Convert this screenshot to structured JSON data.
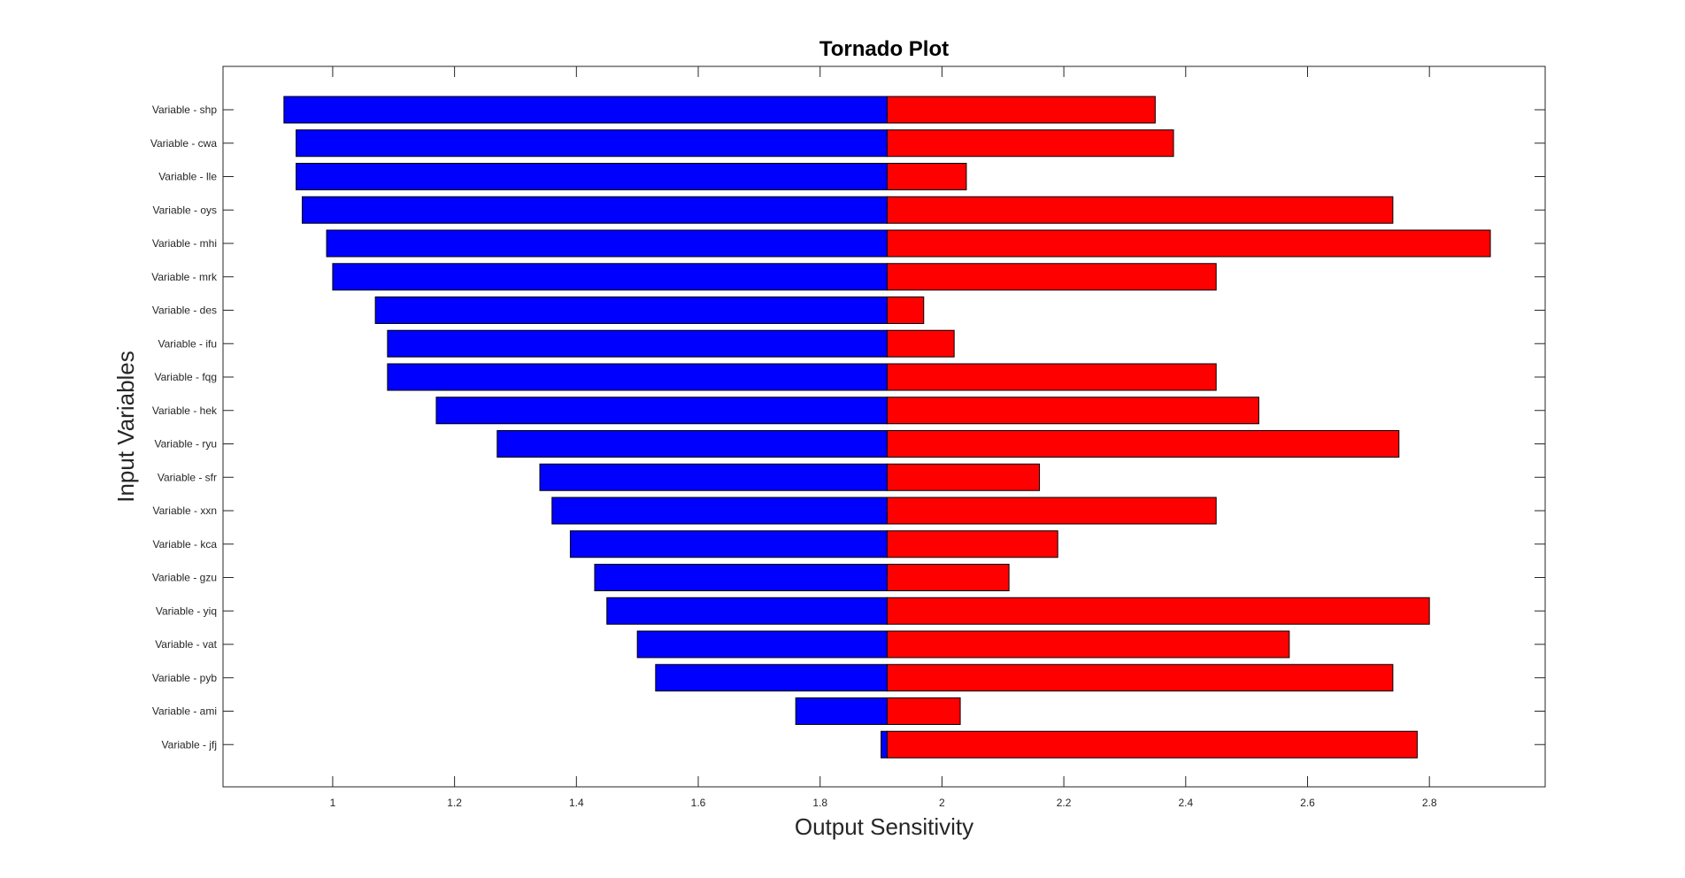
{
  "chart_data": {
    "type": "bar",
    "orientation": "horizontal",
    "title": "Tornado Plot",
    "xlabel": "Output Sensitivity",
    "ylabel": "Input Variables",
    "xlim": [
      0.82,
      2.99
    ],
    "xticks": [
      1,
      1.2,
      1.4,
      1.6,
      1.8,
      2,
      2.2,
      2.4,
      2.6,
      2.8
    ],
    "xtick_labels": [
      "1",
      "1.2",
      "1.4",
      "1.6",
      "1.8",
      "2",
      "2.2",
      "2.4",
      "2.6",
      "2.8"
    ],
    "baseline": 1.91,
    "grid": false,
    "legend": "none",
    "colors": {
      "low": "#0000ff",
      "high": "#ff0000",
      "edge": "#000000"
    },
    "categories": [
      "Variable - shp",
      "Variable - cwa",
      "Variable - lle",
      "Variable - oys",
      "Variable - mhi",
      "Variable - mrk",
      "Variable - des",
      "Variable - ifu",
      "Variable - fqg",
      "Variable - hek",
      "Variable - ryu",
      "Variable - sfr",
      "Variable - xxn",
      "Variable - kca",
      "Variable - gzu",
      "Variable - yiq",
      "Variable - vat",
      "Variable - pyb",
      "Variable - ami",
      "Variable - jfj"
    ],
    "series": [
      {
        "values": [
          0.92,
          0.94,
          0.94,
          0.95,
          0.99,
          1.0,
          1.07,
          1.09,
          1.09,
          1.17,
          1.27,
          1.34,
          1.36,
          1.39,
          1.43,
          1.45,
          1.5,
          1.53,
          1.76,
          1.9
        ]
      },
      {
        "values": [
          2.35,
          2.38,
          2.04,
          2.74,
          2.9,
          2.45,
          1.97,
          2.02,
          2.45,
          2.52,
          2.75,
          2.16,
          2.45,
          2.19,
          2.11,
          2.8,
          2.57,
          2.74,
          2.03,
          2.78
        ]
      }
    ]
  }
}
